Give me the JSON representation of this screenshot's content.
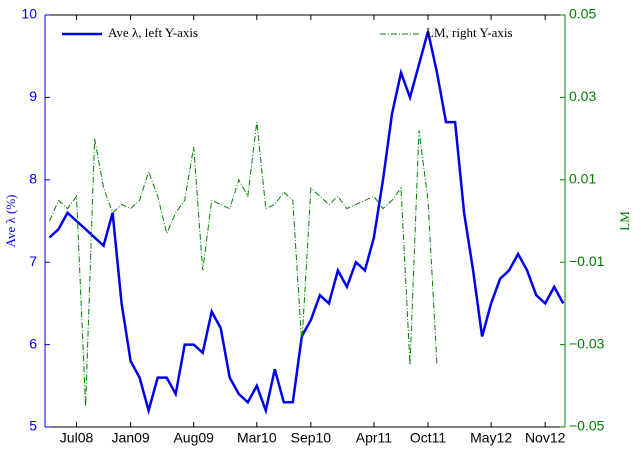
{
  "chart_data": {
    "type": "line",
    "x": [
      -3,
      -2,
      -1,
      0,
      1,
      2,
      3,
      4,
      5,
      6,
      7,
      8,
      9,
      10,
      11,
      12,
      13,
      14,
      15,
      16,
      17,
      18,
      19,
      20,
      21,
      22,
      23,
      24,
      25,
      26,
      27,
      28,
      29,
      30,
      31,
      32,
      33,
      34,
      35,
      36,
      37,
      38,
      39,
      40,
      41,
      42,
      43,
      44,
      45,
      46,
      47,
      48,
      49,
      50,
      51,
      52,
      53,
      54
    ],
    "xlim": [
      -3.5,
      54.2
    ],
    "xticks": [
      {
        "value": 0,
        "label": "Jul08"
      },
      {
        "value": 6,
        "label": "Jan09"
      },
      {
        "value": 13,
        "label": "Aug09"
      },
      {
        "value": 20,
        "label": "Mar10"
      },
      {
        "value": 26,
        "label": "Sep10"
      },
      {
        "value": 33,
        "label": "Apr11"
      },
      {
        "value": 39,
        "label": "Oct11"
      },
      {
        "value": 46,
        "label": "May12"
      },
      {
        "value": 52,
        "label": "Nov12"
      }
    ],
    "ylabel": "Ave λ (%)",
    "y2label": "LM",
    "ylim": [
      5,
      10
    ],
    "yticks": [
      5,
      6,
      7,
      8,
      9,
      10
    ],
    "y2lim": [
      -0.05,
      0.05
    ],
    "y2ticks": [
      {
        "value": -0.05,
        "label": "−0.05"
      },
      {
        "value": -0.03,
        "label": "−0.03"
      },
      {
        "value": -0.01,
        "label": "−0.01"
      },
      0.01,
      0.03,
      0.05
    ],
    "series": [
      {
        "name": "Ave λ, left Y-axis",
        "color": "#0000ee",
        "axis": "y",
        "values": [
          7.3,
          7.4,
          7.6,
          7.5,
          7.4,
          7.3,
          7.2,
          7.6,
          6.5,
          5.8,
          5.6,
          5.2,
          5.6,
          5.6,
          5.4,
          6.0,
          6.0,
          5.9,
          6.4,
          6.2,
          5.6,
          5.4,
          5.3,
          5.5,
          5.2,
          5.7,
          5.3,
          5.3,
          6.1,
          6.3,
          6.6,
          6.5,
          6.9,
          6.7,
          7.0,
          6.9,
          7.3,
          8.0,
          8.8,
          9.3,
          9.0,
          9.4,
          9.8,
          9.3,
          8.7,
          8.7,
          7.6,
          6.9,
          6.1,
          6.5,
          6.8,
          6.9,
          7.1,
          6.9,
          6.6,
          6.5,
          6.7,
          6.5
        ]
      },
      {
        "name": "LM, right Y-axis",
        "color": "#008000",
        "axis": "y2",
        "values": [
          0.0,
          0.005,
          0.003,
          0.006,
          -0.045,
          0.02,
          0.008,
          0.002,
          0.004,
          0.003,
          0.005,
          0.012,
          0.006,
          -0.003,
          0.002,
          0.005,
          0.018,
          -0.012,
          0.005,
          0.004,
          0.003,
          0.01,
          0.006,
          0.024,
          0.003,
          0.004,
          0.007,
          0.005,
          -0.03,
          0.008,
          0.006,
          0.004,
          0.006,
          0.003,
          0.004,
          0.005,
          0.006,
          0.003,
          0.005,
          0.008,
          -0.035,
          0.022,
          0.005,
          -0.035,
          null,
          null,
          null,
          null,
          null,
          null,
          null,
          null,
          null,
          null,
          null,
          null,
          null,
          null
        ]
      }
    ]
  }
}
